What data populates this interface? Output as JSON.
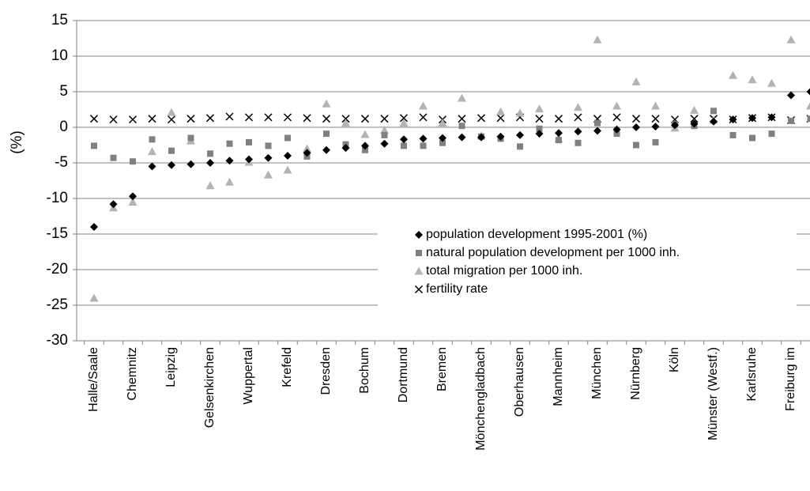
{
  "chart_data": {
    "type": "scatter",
    "y_label": "(%)",
    "categories": [
      "Halle/Saale",
      null,
      "Chemnitz",
      null,
      "Leipzig",
      null,
      "Gelsenkirchen",
      null,
      "Wuppertal",
      null,
      "Krefeld",
      null,
      "Dresden",
      null,
      "Bochum",
      null,
      "Dortmund",
      null,
      "Bremen",
      null,
      "Mönchengladbach",
      null,
      "Oberhausen",
      null,
      "Mannheim",
      null,
      "München",
      null,
      "Nürnberg",
      null,
      "Köln",
      null,
      "Münster (Westf.)",
      null,
      "Karlsruhe",
      null,
      "Freiburg im",
      null
    ],
    "series": [
      {
        "name": "population development 1995-2001 (%)",
        "color": "#000000",
        "marker": "diamond",
        "values": [
          -14.0,
          -10.8,
          -9.7,
          -5.5,
          -5.3,
          -5.2,
          -5.0,
          -4.7,
          -4.5,
          -4.3,
          -4.0,
          -3.6,
          -3.2,
          -2.9,
          -2.6,
          -2.3,
          -1.7,
          -1.6,
          -1.5,
          -1.4,
          -1.4,
          -1.3,
          -1.1,
          -0.9,
          -0.8,
          -0.6,
          -0.5,
          -0.3,
          0.0,
          0.1,
          0.3,
          0.5,
          0.8,
          1.1,
          1.3,
          1.4,
          4.5,
          5.0
        ]
      },
      {
        "name": "natural population development per 1000 inh.",
        "color": "#808080",
        "marker": "square",
        "values": [
          -2.6,
          -4.3,
          -4.8,
          -1.7,
          -3.3,
          -1.5,
          -3.7,
          -2.3,
          -2.1,
          -2.6,
          -1.5,
          -4.1,
          -0.9,
          -2.4,
          -3.2,
          -1.1,
          -2.6,
          -2.6,
          -2.2,
          0.2,
          -1.3,
          -1.6,
          -2.7,
          -0.2,
          -1.8,
          -2.2,
          0.6,
          -0.9,
          -2.5,
          -2.1,
          0.4,
          0.2,
          2.3,
          -1.1,
          -1.5,
          -0.9,
          0.9,
          1.2
        ]
      },
      {
        "name": "total migration per 1000 inh.",
        "color": "#b3b3b3",
        "marker": "triangle",
        "values": [
          -24.0,
          -11.3,
          -10.5,
          -3.4,
          2.1,
          -1.9,
          -8.2,
          -7.7,
          -4.9,
          -6.7,
          -6.0,
          -3.0,
          3.3,
          0.6,
          -1.0,
          -0.4,
          0.6,
          3.0,
          0.6,
          4.1,
          -1.2,
          2.2,
          2.0,
          2.6,
          -1.6,
          2.8,
          12.3,
          3.0,
          6.4,
          3.0,
          -0.1,
          2.4,
          1.0,
          7.3,
          6.7,
          6.2,
          12.3,
          3.0
        ]
      },
      {
        "name": "fertility rate",
        "color": "#000000",
        "marker": "x",
        "values": [
          1.2,
          1.1,
          1.1,
          1.2,
          1.1,
          1.2,
          1.3,
          1.5,
          1.4,
          1.4,
          1.4,
          1.3,
          1.2,
          1.2,
          1.2,
          1.2,
          1.3,
          1.4,
          1.1,
          1.2,
          1.3,
          1.3,
          1.4,
          1.2,
          1.2,
          1.4,
          1.2,
          1.4,
          1.2,
          1.2,
          1.1,
          1.2,
          1.2,
          1.1,
          1.3,
          1.4,
          1.0,
          1.2
        ]
      }
    ],
    "ylim": [
      -30,
      15
    ],
    "yticks": [
      -30,
      -25,
      -20,
      -15,
      -10,
      -5,
      0,
      5,
      10,
      15
    ],
    "grid": true
  }
}
